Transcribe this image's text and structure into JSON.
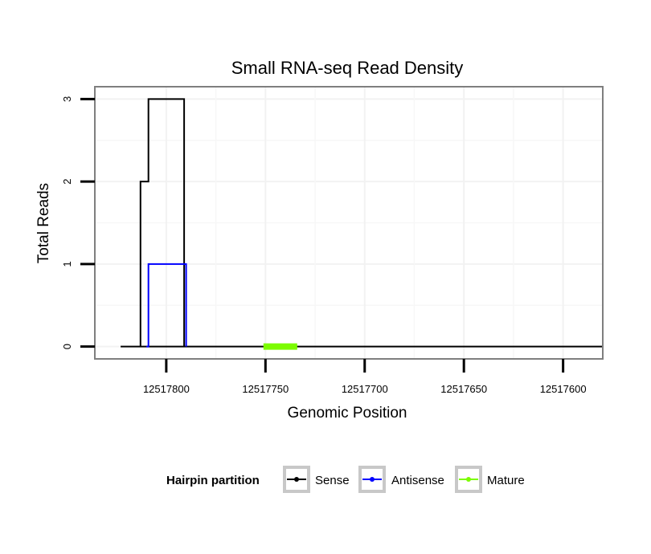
{
  "chart_data": {
    "type": "line",
    "title": "Small RNA-seq Read Density",
    "xlabel": "Genomic Position",
    "ylabel": "Total Reads",
    "x_reversed": true,
    "xlim": [
      12517836,
      12517580
    ],
    "ylim": [
      -0.15,
      3.15
    ],
    "x_ticks": [
      12517800,
      12517750,
      12517700,
      12517650,
      12517600
    ],
    "x_tick_labels": [
      "12517800",
      "12517750",
      "12517700",
      "12517650",
      "12517600"
    ],
    "y_ticks": [
      0,
      1,
      2,
      3
    ],
    "y_tick_labels": [
      "0",
      "1",
      "2",
      "3"
    ],
    "grid": true,
    "series": [
      {
        "name": "Sense",
        "color": "#000000",
        "points": [
          [
            12517823,
            0
          ],
          [
            12517800,
            0
          ],
          [
            12517787,
            0
          ],
          [
            12517813,
            0
          ],
          [
            12517813,
            2
          ],
          [
            12517809,
            2
          ],
          [
            12517809,
            3
          ],
          [
            12517791,
            3
          ],
          [
            12517791,
            0
          ],
          [
            12517788,
            0
          ],
          [
            12517580,
            0
          ]
        ]
      },
      {
        "name": "Antisense",
        "color": "#0000ff",
        "points": [
          [
            12517810,
            0
          ],
          [
            12517809,
            0
          ],
          [
            12517809,
            1
          ],
          [
            12517790,
            1
          ],
          [
            12517790,
            0
          ]
        ]
      },
      {
        "name": "Mature",
        "color": "#7cfc00",
        "points": [
          [
            12517751,
            0
          ],
          [
            12517734,
            0
          ]
        ]
      }
    ],
    "legend": {
      "title": "Hairpin partition",
      "position": "bottom",
      "items": [
        {
          "label": "Sense",
          "color": "#000000"
        },
        {
          "label": "Antisense",
          "color": "#0000ff"
        },
        {
          "label": "Mature",
          "color": "#7cfc00"
        }
      ]
    }
  }
}
